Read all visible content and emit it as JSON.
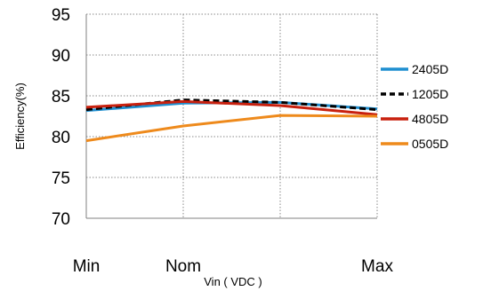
{
  "chart_data": {
    "type": "line",
    "title": "",
    "xlabel": "Vin ( VDC )",
    "ylabel": "Efficiency(%)",
    "categories": [
      "Min",
      "Nom",
      "",
      "Max"
    ],
    "x": [
      0,
      1,
      2,
      3
    ],
    "ylim": [
      70,
      95
    ],
    "yticks": [
      70,
      75,
      80,
      85,
      90,
      95
    ],
    "grid": true,
    "legend_position": "right",
    "series": [
      {
        "name": "2405D",
        "color": "#1f8fd0",
        "dash": false,
        "values": [
          83.2,
          84.1,
          84.2,
          83.4
        ]
      },
      {
        "name": "1205D",
        "color": "#000000",
        "dash": true,
        "values": [
          83.3,
          84.5,
          84.2,
          83.3
        ]
      },
      {
        "name": "4805D",
        "color": "#c8200e",
        "dash": false,
        "values": [
          83.6,
          84.3,
          83.8,
          82.7
        ]
      },
      {
        "name": "0505D",
        "color": "#ee8a1c",
        "dash": false,
        "values": [
          79.5,
          81.3,
          82.6,
          82.5
        ]
      }
    ]
  }
}
